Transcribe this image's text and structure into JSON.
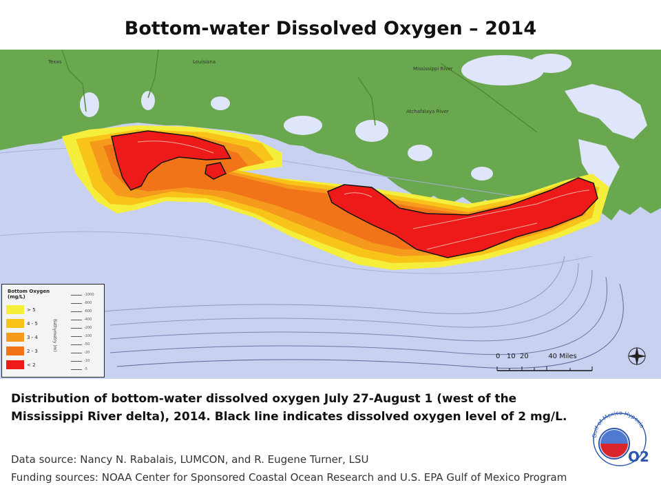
{
  "title": "Bottom-water Dissolved Oxygen – 2014",
  "map_labels": {
    "texas": "Texas",
    "louisiana": "Louisiana",
    "mississippi_river": "Mississippi River",
    "atchafalaya_river": "Atchafalaya River"
  },
  "legend": {
    "title_line1": "Bottom Oxygen",
    "title_line2": "(mg/L)",
    "classes": [
      {
        "label": "> 5",
        "color": "#f5ee3a"
      },
      {
        "label": "4 - 5",
        "color": "#f9c41a"
      },
      {
        "label": "3 - 4",
        "color": "#f59a1c"
      },
      {
        "label": "2 - 3",
        "color": "#f27419"
      },
      {
        "label": "< 2",
        "color": "#ee1a1a"
      }
    ],
    "bathymetry_title": "Bathymetry (m)",
    "bathymetry": [
      "-1000",
      "-800",
      "-600",
      "-400",
      "-200",
      "-100",
      "-50",
      "-20",
      "-10",
      "-5"
    ]
  },
  "scale": {
    "labels": "0   10  20         40 Miles"
  },
  "caption": "Distribution of bottom-water dissolved oxygen July 27-August 1 (west of the Mississippi River delta), 2014. Black line indicates dissolved oxygen level of 2 mg/L.",
  "data_source": "Data source: Nancy N. Rabalais, LUMCON, and R. Eugene Turner, LSU",
  "funding_source": "Funding sources: NOAA Center for Sponsored Coastal Ocean Research and U.S. EPA Gulf of Mexico Program",
  "logo": {
    "ring_text": "Gulf of Mexico Hypoxia",
    "mark": "O2"
  },
  "colors": {
    "land": "#6aa84f",
    "water": "#c6cff0",
    "lake": "#e4e9fb",
    "hypoxic_line": "#111111"
  }
}
